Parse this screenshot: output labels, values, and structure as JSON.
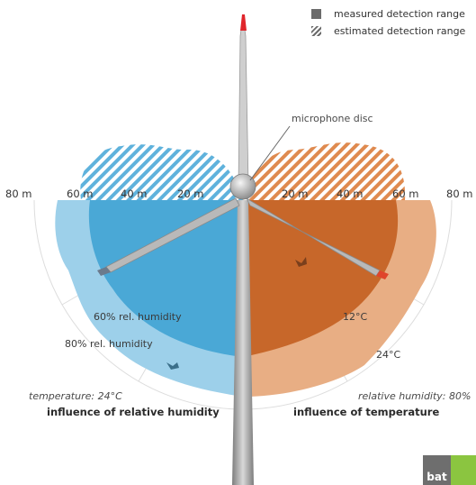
{
  "legend": {
    "measured_label": "measured detection range",
    "estimated_label": "estimated detection range"
  },
  "microphone_label": "microphone disc",
  "distance_labels": {
    "left_80": "80 m",
    "left_60": "60 m",
    "left_40": "40 m",
    "left_20": "20 m",
    "right_20": "20 m",
    "right_40": "40 m",
    "right_60": "60 m",
    "right_80": "80 m"
  },
  "humidity_60_label": "60% rel. humidity",
  "humidity_80_label": "80% rel. humidity",
  "temperature_12_label": "12°C",
  "temperature_24_label": "24°C",
  "left_condition": "temperature: 24°C",
  "right_condition": "relative humidity: 80%",
  "left_title": "influence of relative humidity",
  "right_title": "influence of temperature",
  "logo_text": "bat",
  "colors": {
    "humidity_blue": "#4aa8d6",
    "humidity_light_blue": "#9dd0ea",
    "temperature_orange": "#c7672a",
    "temperature_light_orange": "#e8ae84",
    "blade_tip_red": "#e0252b",
    "logo_green": "#8bc540"
  }
}
